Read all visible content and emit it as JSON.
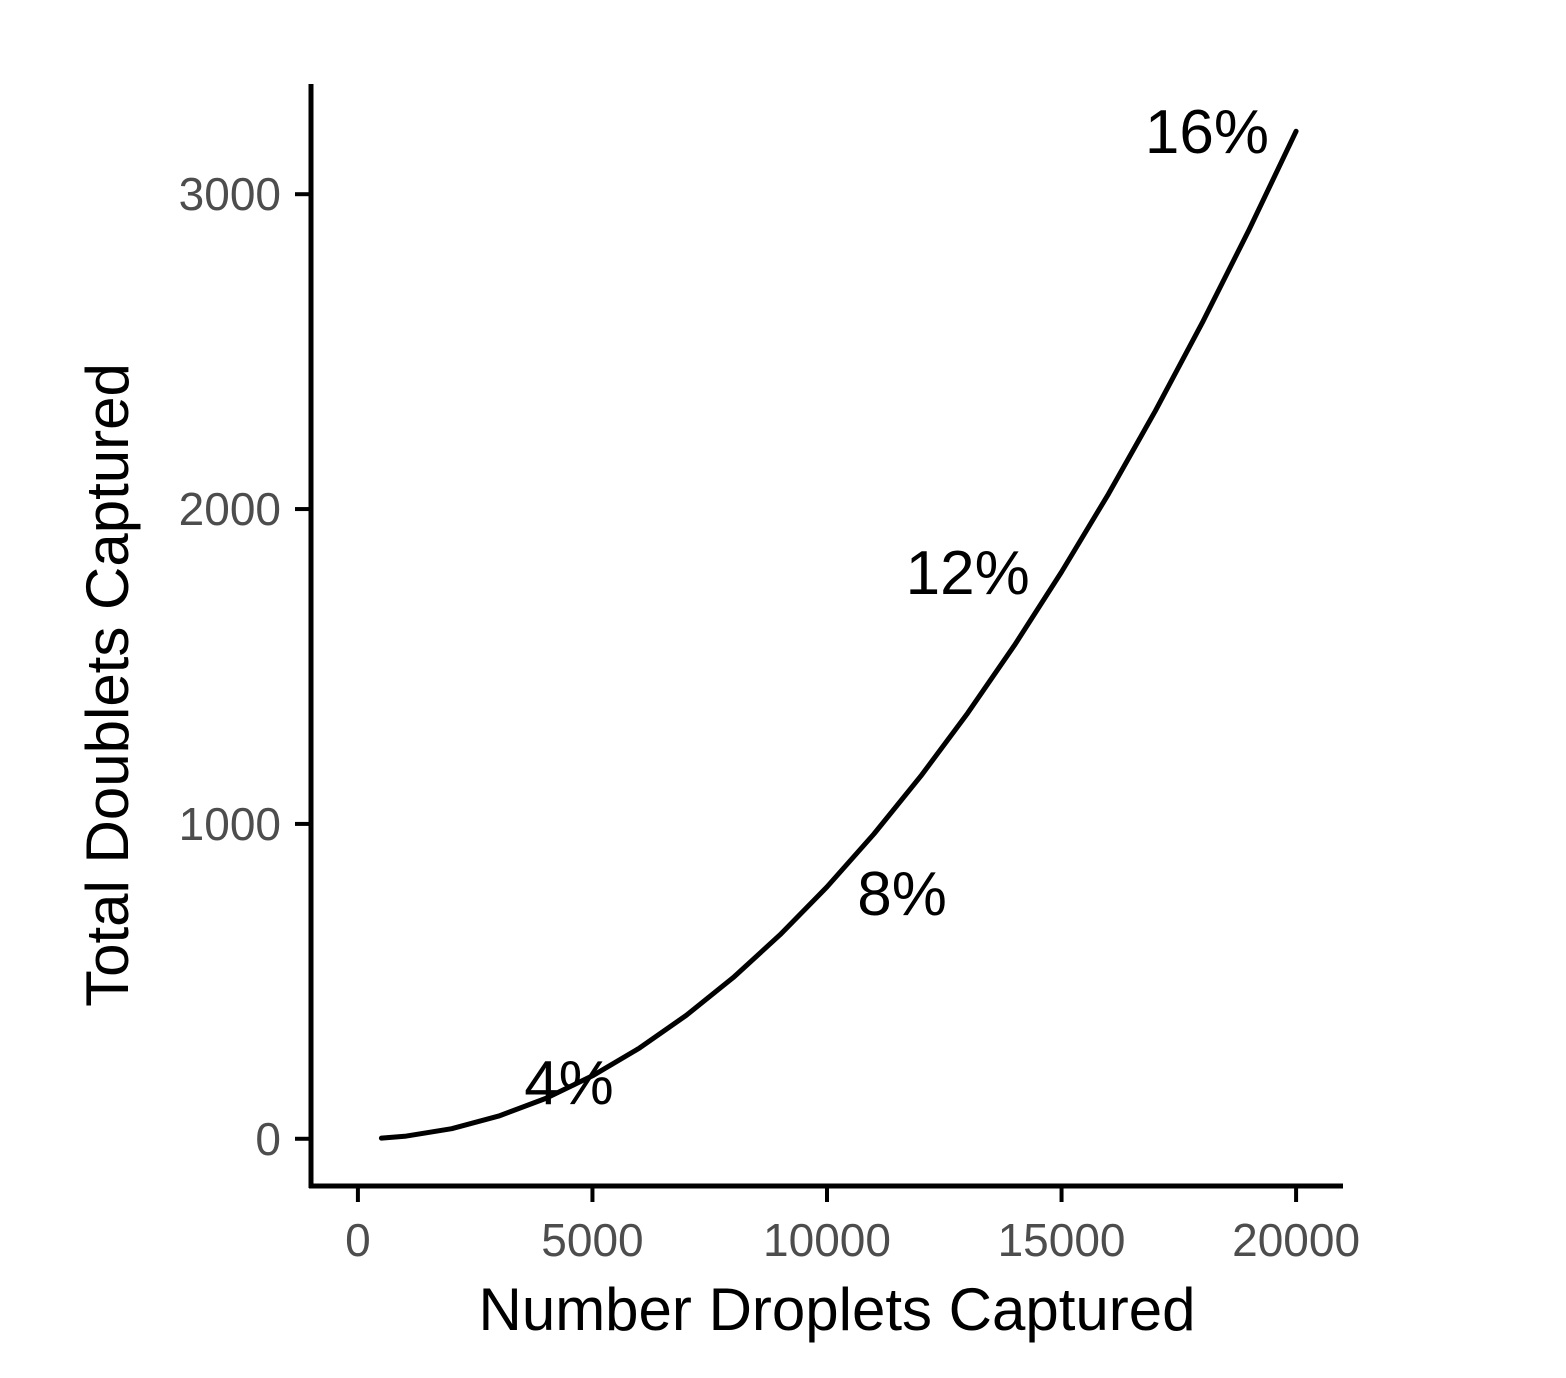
{
  "chart_data": {
    "type": "line",
    "title": "",
    "xlabel": "Number Droplets Captured",
    "ylabel": "Total Doublets Captured",
    "xlim": [
      -1000,
      21000
    ],
    "ylim": [
      -150,
      3350
    ],
    "xticks": [
      0,
      5000,
      10000,
      15000,
      20000
    ],
    "yticks": [
      0,
      1000,
      2000,
      3000
    ],
    "xtick_labels": [
      "0",
      "5000",
      "10000",
      "15000",
      "20000"
    ],
    "ytick_labels": [
      "0",
      "1000",
      "2000",
      "3000"
    ],
    "grid": false,
    "legend": "none",
    "line_color": "#000000",
    "series": [
      {
        "x": [
          500,
          1000,
          2000,
          3000,
          4000,
          5000,
          6000,
          7000,
          8000,
          9000,
          10000,
          11000,
          12000,
          13000,
          14000,
          15000,
          16000,
          17000,
          18000,
          19000,
          20000
        ],
        "values": [
          2,
          8,
          32,
          72,
          128,
          200,
          288,
          392,
          512,
          648,
          800,
          968,
          1152,
          1352,
          1568,
          1800,
          2048,
          2312,
          2592,
          2888,
          3200
        ]
      }
    ],
    "annotations": [
      {
        "text": "4%",
        "x": 4500,
        "y": 180
      },
      {
        "text": "8%",
        "x": 11600,
        "y": 780
      },
      {
        "text": "12%",
        "x": 13000,
        "y": 1800
      },
      {
        "text": "16%",
        "x": 18100,
        "y": 3200
      }
    ]
  }
}
